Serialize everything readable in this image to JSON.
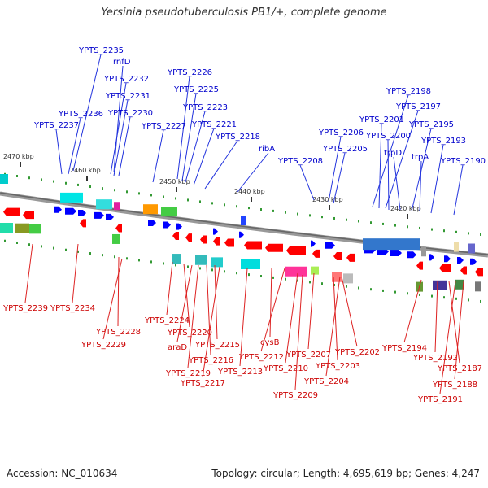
{
  "title": "Yersinia pseudotuberculosis PB1/+, complete genome",
  "footer": {
    "accession": "Accession: NC_010634",
    "summary": "Topology: circular; Length: 4,695,619 bp; Genes: 4,247"
  },
  "colors": {
    "forward_label": "#0000cc",
    "reverse_label": "#cc0000",
    "forward_gene": "#0000ff",
    "reverse_gene": "#ff0000",
    "backbone": "#888888",
    "tick": "#339933"
  },
  "kbp_labels": [
    "2470 kbp",
    "2460 kbp",
    "2450 kbp",
    "2440 kbp",
    "2430 kbp",
    "2420 kbp"
  ],
  "forward_genes": [
    "YPTS_2235",
    "rnfD",
    "YPTS_2232",
    "YPTS_2231",
    "YPTS_2230",
    "YPTS_2236",
    "YPTS_2237",
    "YPTS_2226",
    "YPTS_2225",
    "YPTS_2223",
    "YPTS_2227",
    "YPTS_2221",
    "YPTS_2218",
    "ribA",
    "YPTS_2208",
    "YPTS_2206",
    "YPTS_2205",
    "YPTS_2198",
    "YPTS_2197",
    "YPTS_2201",
    "YPTS_2200",
    "trpD",
    "YPTS_2195",
    "trpA",
    "YPTS_2193",
    "YPTS_2190"
  ],
  "reverse_genes": [
    "YPTS_2239",
    "YPTS_2234",
    "YPTS_2228",
    "YPTS_2229",
    "YPTS_2224",
    "YPTS_2220",
    "araD",
    "YPTS_2215",
    "YPTS_2216",
    "YPTS_2219",
    "YPTS_2217",
    "cysB",
    "YPTS_2212",
    "YPTS_2213",
    "YPTS_2210",
    "YPTS_2207",
    "YPTS_2209",
    "YPTS_2203",
    "YPTS_2204",
    "YPTS_2202",
    "YPTS_2194",
    "YPTS_2192",
    "YPTS_2187",
    "YPTS_2188",
    "YPTS_2191"
  ]
}
